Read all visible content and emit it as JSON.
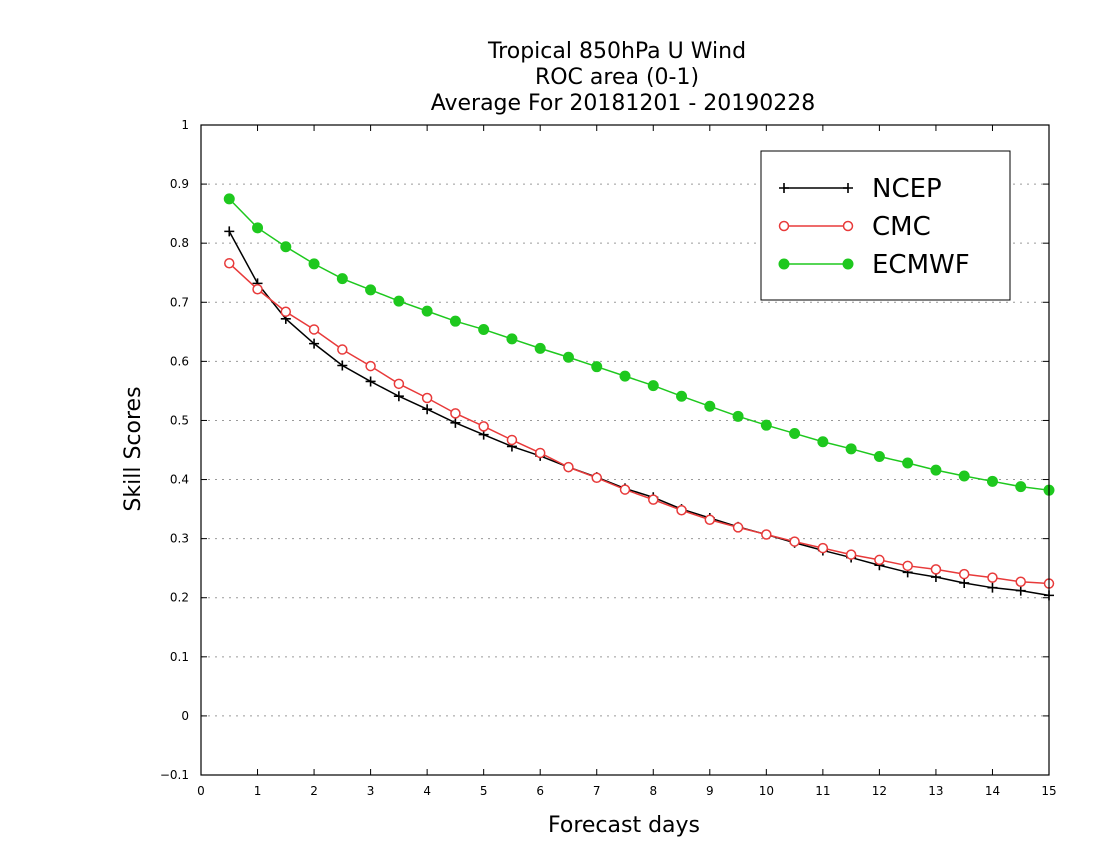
{
  "chart_data": {
    "type": "line",
    "title": [
      "Tropical 850hPa U Wind",
      "ROC area (0-1)",
      "Average For 20181201 - 20190228"
    ],
    "xlabel": "Forecast days",
    "ylabel": "Skill Scores",
    "xlim": [
      0,
      15
    ],
    "ylim": [
      -0.1,
      1
    ],
    "xticks": [
      "0",
      "1",
      "2",
      "3",
      "4",
      "5",
      "6",
      "7",
      "8",
      "9",
      "10",
      "11",
      "12",
      "13",
      "14",
      "15"
    ],
    "yticks": [
      "−0.1",
      "0",
      "0.1",
      "0.2",
      "0.3",
      "0.4",
      "0.5",
      "0.6",
      "0.7",
      "0.8",
      "0.9",
      "1"
    ],
    "grid": "horizontal dotted",
    "legend_position": "top-right",
    "x": [
      0.5,
      1,
      1.5,
      2,
      2.5,
      3,
      3.5,
      4,
      4.5,
      5,
      5.5,
      6,
      6.5,
      7,
      7.5,
      8,
      8.5,
      9,
      9.5,
      10,
      10.5,
      11,
      11.5,
      12,
      12.5,
      13,
      13.5,
      14,
      14.5,
      15
    ],
    "series": [
      {
        "name": "NCEP",
        "color": "#000000",
        "marker": "plus",
        "values": [
          0.82,
          0.732,
          0.672,
          0.63,
          0.593,
          0.566,
          0.541,
          0.519,
          0.496,
          0.476,
          0.456,
          0.44,
          0.421,
          0.404,
          0.385,
          0.37,
          0.35,
          0.335,
          0.32,
          0.307,
          0.293,
          0.28,
          0.268,
          0.255,
          0.243,
          0.235,
          0.225,
          0.217,
          0.212,
          0.204
        ]
      },
      {
        "name": "CMC",
        "color": "#e83a3a",
        "marker": "open-circle",
        "values": [
          0.766,
          0.722,
          0.684,
          0.654,
          0.62,
          0.592,
          0.562,
          0.538,
          0.512,
          0.49,
          0.467,
          0.445,
          0.421,
          0.403,
          0.383,
          0.366,
          0.348,
          0.332,
          0.319,
          0.307,
          0.295,
          0.284,
          0.273,
          0.264,
          0.254,
          0.248,
          0.24,
          0.234,
          0.227,
          0.224
        ]
      },
      {
        "name": "ECMWF",
        "color": "#1ec81e",
        "marker": "filled-circle",
        "values": [
          0.875,
          0.826,
          0.794,
          0.765,
          0.74,
          0.721,
          0.702,
          0.685,
          0.668,
          0.654,
          0.638,
          0.622,
          0.607,
          0.591,
          0.575,
          0.559,
          0.541,
          0.524,
          0.507,
          0.492,
          0.478,
          0.464,
          0.452,
          0.439,
          0.428,
          0.416,
          0.406,
          0.397,
          0.388,
          0.382
        ]
      }
    ]
  }
}
